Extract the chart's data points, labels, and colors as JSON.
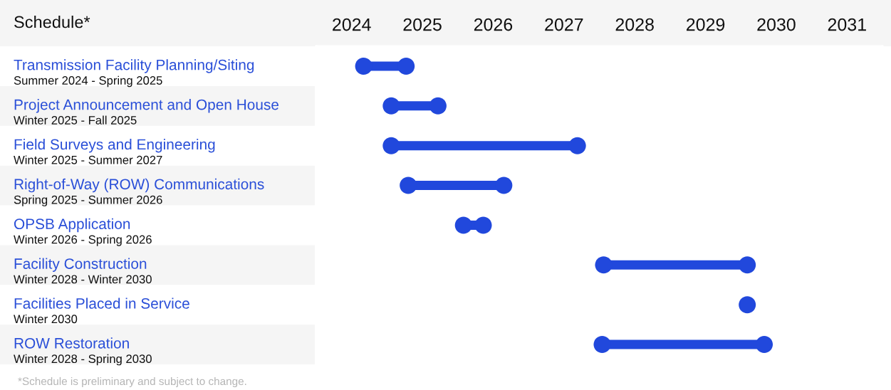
{
  "chart_data": {
    "type": "line",
    "orientation": "horizontal",
    "title": "Schedule*",
    "marker": "circle",
    "categories": [
      "Transmission Facility Planning/Siting",
      "Project Announcement and Open House",
      "Field Surveys and Engineering",
      "Right-of-Way (ROW) Communications",
      "OPSB Application",
      "Facility Construction",
      "Facilities Placed in Service",
      "ROW Restoration"
    ],
    "series": [
      {
        "color": "#2148dc",
        "x": [
          "Transmission Facility Planning/Siting",
          "Transmission Facility Planning/Siting"
        ],
        "values": [
          2024.67,
          2025.27
        ]
      },
      {
        "color": "#2148dc",
        "x": [
          "Project Announcement and Open House",
          "Project Announcement and Open House"
        ],
        "values": [
          2025.06,
          2025.72
        ]
      },
      {
        "color": "#2148dc",
        "x": [
          "Field Surveys and Engineering",
          "Field Surveys and Engineering"
        ],
        "values": [
          2025.06,
          2027.69
        ]
      },
      {
        "color": "#2148dc",
        "x": [
          "Right-of-Way (ROW) Communications",
          "Right-of-Way (ROW) Communications"
        ],
        "values": [
          2025.3,
          2026.65
        ]
      },
      {
        "color": "#2148dc",
        "x": [
          "OPSB Application",
          "OPSB Application"
        ],
        "values": [
          2026.08,
          2026.36
        ]
      },
      {
        "color": "#2148dc",
        "x": [
          "Facility Construction",
          "Facility Construction"
        ],
        "values": [
          2028.06,
          2030.09
        ]
      },
      {
        "color": "#2148dc",
        "x": [
          "Facilities Placed in Service"
        ],
        "values": [
          2030.09
        ]
      },
      {
        "color": "#2148dc",
        "x": [
          "ROW Restoration",
          "ROW Restoration"
        ],
        "values": [
          2028.04,
          2030.33
        ]
      }
    ],
    "xlim": [
      2024,
      2032
    ],
    "xticks": [
      {
        "value": 2024.5,
        "label": "2024"
      },
      {
        "value": 2025.5,
        "label": "2025"
      },
      {
        "value": 2026.5,
        "label": "2026"
      },
      {
        "value": 2027.5,
        "label": "2027"
      },
      {
        "value": 2028.5,
        "label": "2028"
      },
      {
        "value": 2029.5,
        "label": "2029"
      },
      {
        "value": 2030.5,
        "label": "2030"
      },
      {
        "value": 2031.5,
        "label": "2031"
      }
    ],
    "annotations": [
      "Summer 2024 - Spring 2025",
      "Winter 2025 - Fall 2025",
      "Winter 2025 - Summer 2027",
      "Spring 2025 - Summer 2026",
      "Winter 2026 - Spring 2026",
      "Winter 2028 - Winter 2030",
      "Winter 2030",
      "Winter 2028 - Spring 2030",
      "*Schedule is preliminary and subject to change."
    ]
  }
}
